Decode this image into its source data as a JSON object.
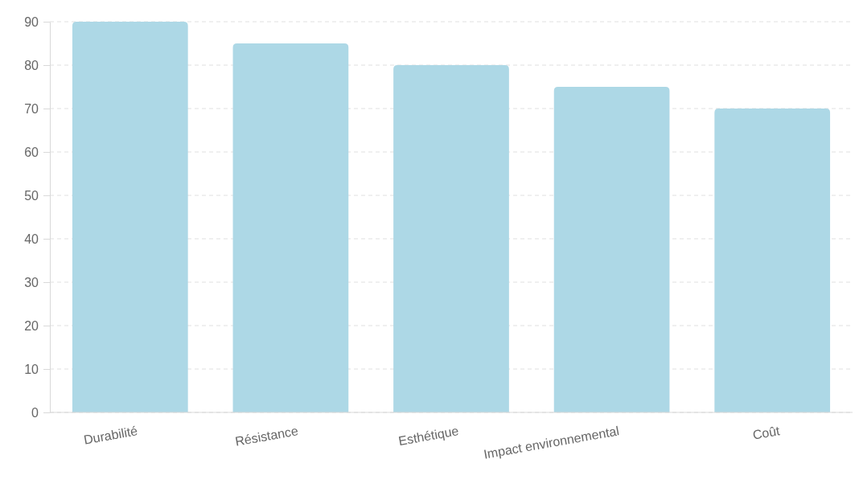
{
  "chart_data": {
    "type": "bar",
    "categories": [
      "Durabilité",
      "Résistance",
      "Esthétique",
      "Impact environnemental",
      "Coût"
    ],
    "values": [
      90,
      85,
      80,
      75,
      70
    ],
    "color": "#add8e6",
    "ylim": [
      0,
      90
    ],
    "yticks": [
      0,
      10,
      20,
      30,
      40,
      50,
      60,
      70,
      80,
      90
    ],
    "grid": "y"
  }
}
